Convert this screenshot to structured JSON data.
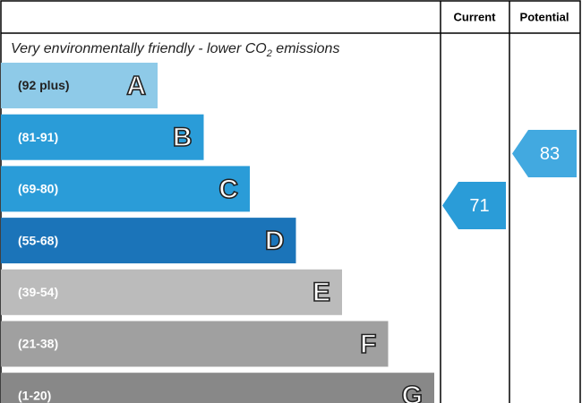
{
  "header": {
    "current": "Current",
    "potential": "Potential"
  },
  "subtitle": {
    "text": "Very environmentally friendly - lower CO",
    "subscript": "2",
    "suffix": " emissions"
  },
  "bands": [
    {
      "range": "(92 plus)",
      "letter": "A",
      "color": "#8ecae8",
      "text_color": "#222222"
    },
    {
      "range": "(81-91)",
      "letter": "B",
      "color": "#2a9cd8",
      "text_color": "#ffffff"
    },
    {
      "range": "(69-80)",
      "letter": "C",
      "color": "#2a9cd8",
      "text_color": "#ffffff"
    },
    {
      "range": "(55-68)",
      "letter": "D",
      "color": "#1b74b9",
      "text_color": "#ffffff"
    },
    {
      "range": "(39-54)",
      "letter": "E",
      "color": "#bbbbbb",
      "text_color": "#ffffff"
    },
    {
      "range": "(21-38)",
      "letter": "F",
      "color": "#a0a0a0",
      "text_color": "#ffffff"
    },
    {
      "range": "(1-20)",
      "letter": "G",
      "color": "#888888",
      "text_color": "#ffffff"
    }
  ],
  "current": {
    "value": 71,
    "color": "#2a9cd8"
  },
  "potential": {
    "value": 83,
    "color": "#42a9e0"
  }
}
